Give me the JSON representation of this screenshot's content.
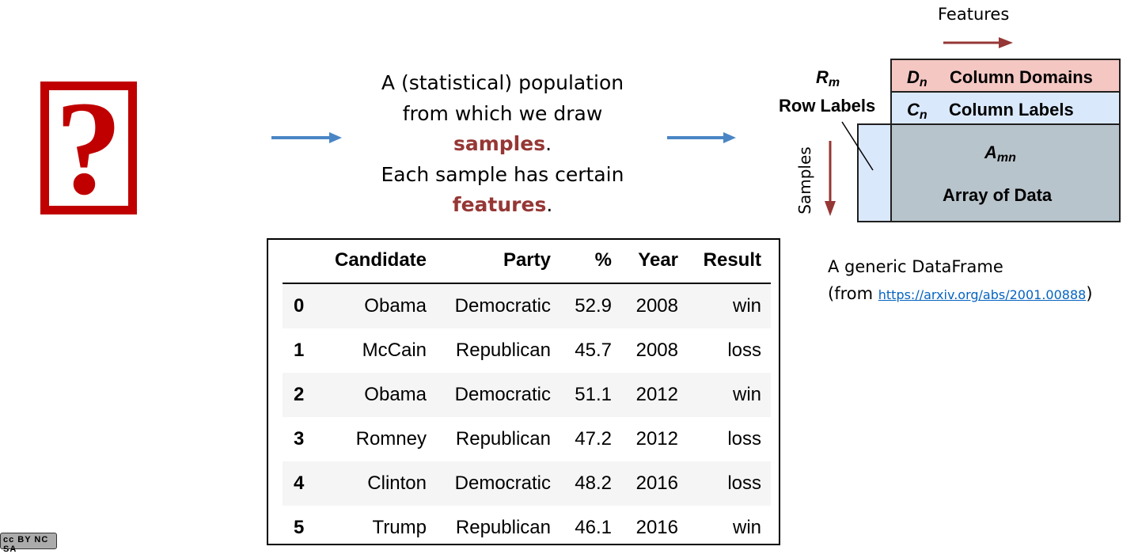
{
  "icon": {
    "question_glyph": "?",
    "color": "#c00000"
  },
  "middle_text": {
    "line1": "A (statistical) population",
    "line2": "from which we draw",
    "samples_word": "samples",
    "samples_punct": ".",
    "line4": "Each sample has certain",
    "features_word": "features",
    "features_punct": ".",
    "highlight_color": "#953735"
  },
  "arrows": {
    "color": "#4a86c5"
  },
  "table": {
    "headers": [
      "Candidate",
      "Party",
      "%",
      "Year",
      "Result"
    ],
    "rows": [
      {
        "index": "0",
        "candidate": "Obama",
        "party": "Democratic",
        "pct": "52.9",
        "year": "2008",
        "result": "win"
      },
      {
        "index": "1",
        "candidate": "McCain",
        "party": "Republican",
        "pct": "45.7",
        "year": "2008",
        "result": "loss"
      },
      {
        "index": "2",
        "candidate": "Obama",
        "party": "Democratic",
        "pct": "51.1",
        "year": "2012",
        "result": "win"
      },
      {
        "index": "3",
        "candidate": "Romney",
        "party": "Republican",
        "pct": "47.2",
        "year": "2012",
        "result": "loss"
      },
      {
        "index": "4",
        "candidate": "Clinton",
        "party": "Democratic",
        "pct": "48.2",
        "year": "2016",
        "result": "loss"
      },
      {
        "index": "5",
        "candidate": "Trump",
        "party": "Republican",
        "pct": "46.1",
        "year": "2016",
        "result": "win"
      }
    ]
  },
  "dataframe": {
    "features_label": "Features",
    "samples_label": "Samples",
    "rm_symbol": "R",
    "rm_sub": "m",
    "row_labels": "Row Labels",
    "dn_symbol": "D",
    "dn_sub": "n",
    "column_domains": "Column Domains",
    "cn_symbol": "C",
    "cn_sub": "n",
    "column_labels": "Column Labels",
    "amn_symbol": "A",
    "amn_sub": "mn",
    "array_of_data": "Array of Data",
    "arrow_color": "#953735",
    "domain_fill": "#f4c7c3",
    "labels_fill": "#dae8fc",
    "array_fill": "#b8c4cc"
  },
  "caption": {
    "line1": "A generic DataFrame",
    "prefix": "(from ",
    "link": "https://arxiv.org/abs/2001.00888",
    "suffix": ")"
  },
  "license_badge": "cc BY NC SA"
}
